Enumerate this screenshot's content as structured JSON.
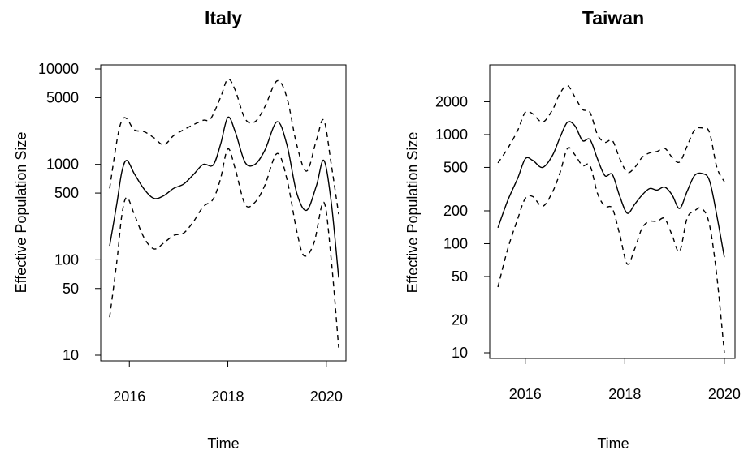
{
  "chart_data": [
    {
      "type": "line",
      "title": "Italy",
      "xlabel": "Time",
      "ylabel": "Effective Population Size",
      "yscale": "log",
      "xlim": [
        2015.6,
        2020.3
      ],
      "ylim": [
        10,
        10000
      ],
      "x_ticks": [
        2016,
        2018,
        2020
      ],
      "x_tick_labels": [
        "2016",
        "2018",
        "2020"
      ],
      "y_ticks": [
        10,
        50,
        100,
        500,
        1000,
        5000,
        10000
      ],
      "y_tick_labels": [
        "10",
        "50",
        "100",
        "500",
        "1000",
        "5000",
        "10000"
      ],
      "grid": false,
      "series": [
        {
          "style": "solid",
          "x": [
            2015.6,
            2015.75,
            2015.85,
            2015.95,
            2016.1,
            2016.3,
            2016.5,
            2016.7,
            2016.9,
            2017.1,
            2017.3,
            2017.5,
            2017.7,
            2017.85,
            2018.0,
            2018.15,
            2018.35,
            2018.55,
            2018.75,
            2019.0,
            2019.2,
            2019.4,
            2019.6,
            2019.8,
            2019.95,
            2020.1,
            2020.25
          ],
          "y": [
            140,
            400,
            850,
            1100,
            800,
            550,
            440,
            470,
            560,
            620,
            780,
            1000,
            980,
            1600,
            3100,
            2200,
            1050,
            1000,
            1400,
            2800,
            1600,
            500,
            330,
            600,
            1100,
            400,
            65
          ]
        },
        {
          "style": "dashed",
          "x": [
            2015.6,
            2015.75,
            2015.85,
            2015.95,
            2016.1,
            2016.3,
            2016.5,
            2016.7,
            2016.9,
            2017.1,
            2017.3,
            2017.5,
            2017.65,
            2017.85,
            2018.0,
            2018.15,
            2018.35,
            2018.55,
            2018.75,
            2019.0,
            2019.2,
            2019.4,
            2019.6,
            2019.8,
            2019.95,
            2020.1,
            2020.25
          ],
          "y": [
            560,
            1800,
            2900,
            3000,
            2300,
            2200,
            1900,
            1600,
            2000,
            2300,
            2600,
            2900,
            3000,
            5000,
            7800,
            6000,
            3000,
            2800,
            4000,
            7500,
            5000,
            1600,
            850,
            1800,
            2900,
            1000,
            300
          ]
        },
        {
          "style": "dashed",
          "x": [
            2015.6,
            2015.75,
            2015.85,
            2015.95,
            2016.1,
            2016.3,
            2016.5,
            2016.7,
            2016.9,
            2017.1,
            2017.3,
            2017.5,
            2017.7,
            2017.85,
            2018.0,
            2018.15,
            2018.35,
            2018.55,
            2018.75,
            2019.0,
            2019.2,
            2019.4,
            2019.55,
            2019.75,
            2019.95,
            2020.1,
            2020.25
          ],
          "y": [
            25,
            100,
            300,
            450,
            300,
            170,
            130,
            150,
            180,
            190,
            250,
            360,
            430,
            700,
            1450,
            900,
            380,
            400,
            600,
            1300,
            700,
            200,
            110,
            150,
            400,
            100,
            12
          ]
        }
      ]
    },
    {
      "type": "line",
      "title": "Taiwan",
      "xlabel": "Time",
      "ylabel": "Effective Population Size",
      "yscale": "log",
      "xlim": [
        2015.4,
        2020.1
      ],
      "ylim": [
        10,
        3200
      ],
      "x_ticks": [
        2016,
        2018,
        2020
      ],
      "x_tick_labels": [
        "2016",
        "2018",
        "2020"
      ],
      "y_ticks": [
        10,
        20,
        50,
        100,
        200,
        500,
        1000,
        2000
      ],
      "y_tick_labels": [
        "10",
        "20",
        "50",
        "100",
        "200",
        "500",
        "1000",
        "2000"
      ],
      "grid": false,
      "series": [
        {
          "style": "solid",
          "x": [
            2015.45,
            2015.65,
            2015.85,
            2016.0,
            2016.15,
            2016.35,
            2016.55,
            2016.7,
            2016.85,
            2017.0,
            2017.15,
            2017.3,
            2017.45,
            2017.6,
            2017.75,
            2017.9,
            2018.05,
            2018.2,
            2018.35,
            2018.5,
            2018.65,
            2018.8,
            2018.95,
            2019.1,
            2019.25,
            2019.4,
            2019.55,
            2019.7,
            2019.85,
            2020.0
          ],
          "y": [
            140,
            250,
            400,
            600,
            580,
            500,
            650,
            950,
            1300,
            1200,
            880,
            900,
            600,
            420,
            430,
            270,
            190,
            230,
            280,
            320,
            310,
            330,
            280,
            210,
            300,
            420,
            440,
            380,
            180,
            75
          ]
        },
        {
          "style": "dashed",
          "x": [
            2015.45,
            2015.65,
            2015.85,
            2016.0,
            2016.15,
            2016.35,
            2016.55,
            2016.7,
            2016.85,
            2017.0,
            2017.15,
            2017.3,
            2017.45,
            2017.6,
            2017.75,
            2017.9,
            2018.05,
            2018.2,
            2018.35,
            2018.5,
            2018.65,
            2018.8,
            2018.95,
            2019.1,
            2019.25,
            2019.4,
            2019.55,
            2019.7,
            2019.85,
            2020.0
          ],
          "y": [
            550,
            750,
            1100,
            1600,
            1550,
            1300,
            1700,
            2400,
            2800,
            2200,
            1700,
            1600,
            1000,
            850,
            880,
            600,
            450,
            500,
            620,
            680,
            700,
            750,
            620,
            560,
            780,
            1100,
            1150,
            1050,
            500,
            370
          ]
        },
        {
          "style": "dashed",
          "x": [
            2015.45,
            2015.65,
            2015.85,
            2016.0,
            2016.15,
            2016.35,
            2016.55,
            2016.7,
            2016.85,
            2017.0,
            2017.15,
            2017.3,
            2017.45,
            2017.6,
            2017.75,
            2017.9,
            2018.05,
            2018.2,
            2018.35,
            2018.5,
            2018.65,
            2018.8,
            2018.95,
            2019.1,
            2019.25,
            2019.4,
            2019.55,
            2019.7,
            2019.85,
            2020.0
          ],
          "y": [
            40,
            90,
            170,
            260,
            270,
            220,
            300,
            450,
            750,
            650,
            520,
            520,
            290,
            220,
            210,
            120,
            65,
            90,
            140,
            160,
            160,
            170,
            120,
            85,
            170,
            200,
            210,
            150,
            50,
            10
          ]
        }
      ]
    }
  ]
}
